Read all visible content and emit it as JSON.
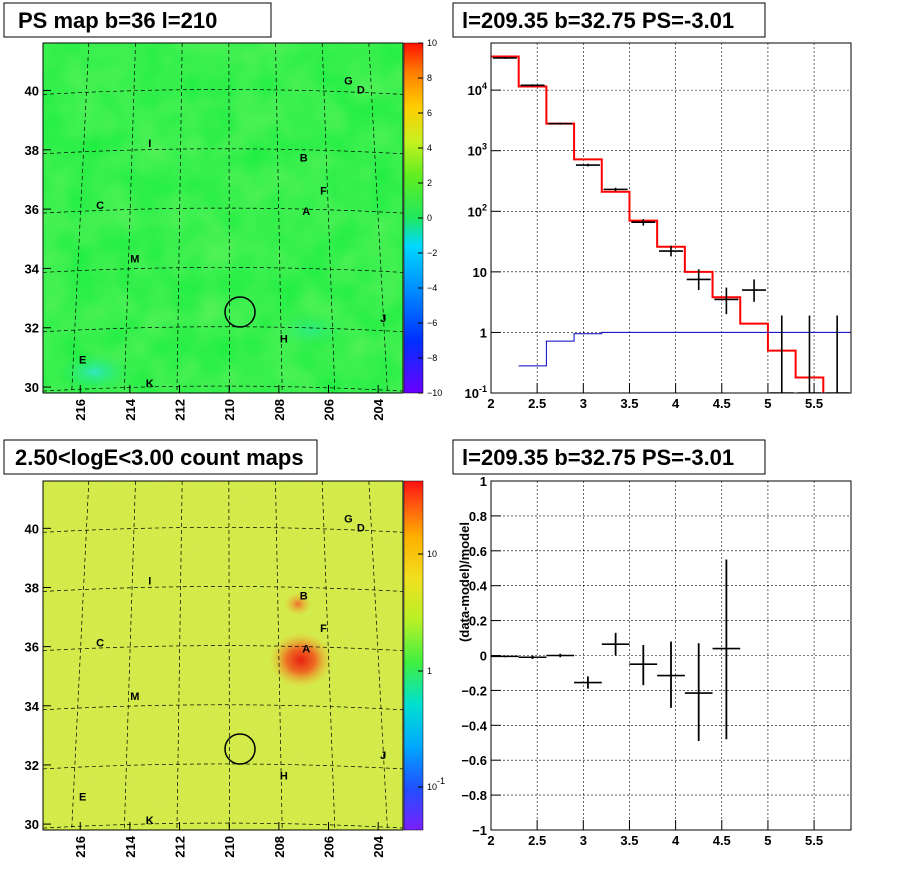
{
  "colors": {
    "ps_map_base": "#22ee44",
    "model_line": "#ff0000",
    "bg_line": "#0000cc",
    "data_marker": "#000000",
    "count_map_base": "#c8e83a",
    "count_map_hot": "#e8241a"
  },
  "panels": {
    "ps_map": {
      "title": "PS map b=36 l=210",
      "lon_ticks": [
        "216",
        "214",
        "212",
        "210",
        "208",
        "206",
        "204"
      ],
      "lat_ticks": [
        "40",
        "38",
        "36",
        "34",
        "32",
        "30"
      ],
      "colorbar_ticks": [
        "10",
        "8",
        "6",
        "4",
        "2",
        "0",
        "−2",
        "−4",
        "−6",
        "−8",
        "−10"
      ],
      "sources": [
        "G",
        "D",
        "I",
        "B",
        "F",
        "C",
        "A",
        "M",
        "J",
        "H",
        "E",
        "K"
      ]
    },
    "count_map": {
      "title": "2.50<logE<3.00 count maps",
      "lon_ticks": [
        "216",
        "214",
        "212",
        "210",
        "208",
        "206",
        "204"
      ],
      "lat_ticks": [
        "40",
        "38",
        "36",
        "34",
        "32",
        "30"
      ],
      "colorbar_ticks": [
        "10",
        "1",
        "10^-1"
      ],
      "sources": [
        "G",
        "D",
        "I",
        "B",
        "F",
        "C",
        "A",
        "M",
        "J",
        "H",
        "E",
        "K"
      ]
    },
    "spectrum": {
      "title": "l=209.35 b=32.75 PS=-3.01",
      "x_ticks": [
        "2",
        "2.5",
        "3",
        "3.5",
        "4",
        "4.5",
        "5",
        "5.5"
      ],
      "y_ticks": [
        "10^-1",
        "1",
        "10",
        "10^2",
        "10^3",
        "10^4"
      ]
    },
    "residual": {
      "title": "l=209.35 b=32.75 PS=-3.01",
      "ylabel": "(data-model)/model",
      "x_ticks": [
        "2",
        "2.5",
        "3",
        "3.5",
        "4",
        "4.5",
        "5",
        "5.5"
      ],
      "y_ticks": [
        "1",
        "0.8",
        "0.6",
        "0.4",
        "0.2",
        "0",
        "−0.2",
        "−0.4",
        "−0.6",
        "−0.8",
        "−1"
      ]
    }
  },
  "chart_data": [
    {
      "type": "heatmap",
      "name": "ps_map",
      "title": "PS map b=36 l=210",
      "xlabel": "",
      "ylabel": "",
      "xlim": [
        217.5,
        203
      ],
      "ylim": [
        29.8,
        41.6
      ],
      "zlim": [
        -10,
        10
      ],
      "circle": {
        "l": 209.35,
        "b": 32.75
      },
      "sources": [
        {
          "label": "G",
          "l": 205.2,
          "b": 40.2
        },
        {
          "label": "D",
          "l": 204.7,
          "b": 39.9
        },
        {
          "label": "I",
          "l": 213.2,
          "b": 38.1
        },
        {
          "label": "B",
          "l": 207.0,
          "b": 37.6
        },
        {
          "label": "F",
          "l": 206.2,
          "b": 36.5
        },
        {
          "label": "C",
          "l": 215.2,
          "b": 36.0
        },
        {
          "label": "A",
          "l": 206.9,
          "b": 35.8
        },
        {
          "label": "M",
          "l": 213.8,
          "b": 34.2
        },
        {
          "label": "J",
          "l": 203.8,
          "b": 32.2
        },
        {
          "label": "H",
          "l": 207.8,
          "b": 31.5
        },
        {
          "label": "E",
          "l": 215.9,
          "b": 30.8
        },
        {
          "label": "K",
          "l": 213.2,
          "b": 30.0
        }
      ]
    },
    {
      "type": "line",
      "name": "spectrum",
      "title": "l=209.35 b=32.75 PS=-3.01",
      "xlabel": "",
      "ylabel": "",
      "xlim": [
        2,
        5.9
      ],
      "ylim": [
        0.1,
        60000
      ],
      "yscale": "log",
      "grid": true,
      "series": [
        {
          "name": "",
          "style": "step-model",
          "bins": [
            [
              2,
              2.3,
              36000
            ],
            [
              2.3,
              2.6,
              11500
            ],
            [
              2.6,
              2.9,
              2800
            ],
            [
              2.9,
              3.2,
              720
            ],
            [
              3.2,
              3.5,
              210
            ],
            [
              3.5,
              3.8,
              70
            ],
            [
              3.8,
              4.1,
              26
            ],
            [
              4.1,
              4.4,
              10
            ],
            [
              4.4,
              4.7,
              3.8
            ],
            [
              4.7,
              5.0,
              1.4
            ],
            [
              5.0,
              5.3,
              0.5
            ],
            [
              5.3,
              5.6,
              0.18
            ],
            [
              5.6,
              5.9,
              0.08
            ]
          ]
        },
        {
          "name": "",
          "style": "step-bg",
          "bins": [
            [
              2.3,
              2.6,
              0.28
            ],
            [
              2.6,
              2.9,
              0.72
            ],
            [
              2.9,
              3.2,
              0.95
            ],
            [
              3.2,
              5.9,
              1.0
            ]
          ]
        },
        {
          "name": "",
          "style": "points",
          "points": [
            [
              2.15,
              34000,
              33000,
              35000
            ],
            [
              2.45,
              12000,
              11500,
              12500
            ],
            [
              2.75,
              2800,
              2700,
              2900
            ],
            [
              3.05,
              580,
              550,
              610
            ],
            [
              3.35,
              230,
              215,
              245
            ],
            [
              3.65,
              66,
              58,
              74
            ],
            [
              3.95,
              22,
              18,
              27
            ],
            [
              4.25,
              7.5,
              5,
              11
            ],
            [
              4.55,
              3.5,
              2,
              5.5
            ],
            [
              4.85,
              5,
              3.2,
              7.5
            ],
            [
              5.15,
              0.1,
              0.1,
              1.9
            ],
            [
              5.45,
              0.1,
              0.1,
              1.9
            ],
            [
              5.75,
              0.1,
              0.1,
              1.9
            ]
          ]
        }
      ]
    },
    {
      "type": "heatmap",
      "name": "count_map",
      "title": "2.50<logE<3.00 count maps",
      "xlabel": "",
      "ylabel": "",
      "xlim": [
        217.5,
        203
      ],
      "ylim": [
        29.8,
        41.6
      ],
      "zscale": "log",
      "circle": {
        "l": 209.35,
        "b": 32.75
      },
      "hotspot": {
        "l": 207.0,
        "b": 35.6
      }
    },
    {
      "type": "scatter",
      "name": "residual",
      "title": "l=209.35 b=32.75 PS=-3.01",
      "xlabel": "",
      "ylabel": "(data-model)/model",
      "xlim": [
        2,
        5.9
      ],
      "ylim": [
        -1,
        1
      ],
      "grid": true,
      "points": [
        {
          "x": 2.15,
          "y": -0.005,
          "xerr": 0.15,
          "ylo": -0.01,
          "yhi": 0.0
        },
        {
          "x": 2.45,
          "y": -0.01,
          "xerr": 0.15,
          "ylo": -0.02,
          "yhi": 0.0
        },
        {
          "x": 2.75,
          "y": 0.0,
          "xerr": 0.15,
          "ylo": -0.01,
          "yhi": 0.01
        },
        {
          "x": 3.05,
          "y": -0.155,
          "xerr": 0.15,
          "ylo": -0.19,
          "yhi": -0.12
        },
        {
          "x": 3.35,
          "y": 0.065,
          "xerr": 0.15,
          "ylo": 0.0,
          "yhi": 0.13
        },
        {
          "x": 3.65,
          "y": -0.05,
          "xerr": 0.15,
          "ylo": -0.17,
          "yhi": 0.06
        },
        {
          "x": 3.95,
          "y": -0.115,
          "xerr": 0.15,
          "ylo": -0.3,
          "yhi": 0.08
        },
        {
          "x": 4.25,
          "y": -0.215,
          "xerr": 0.15,
          "ylo": -0.49,
          "yhi": 0.07
        },
        {
          "x": 4.55,
          "y": 0.04,
          "xerr": 0.15,
          "ylo": -0.48,
          "yhi": 0.55
        }
      ]
    }
  ]
}
